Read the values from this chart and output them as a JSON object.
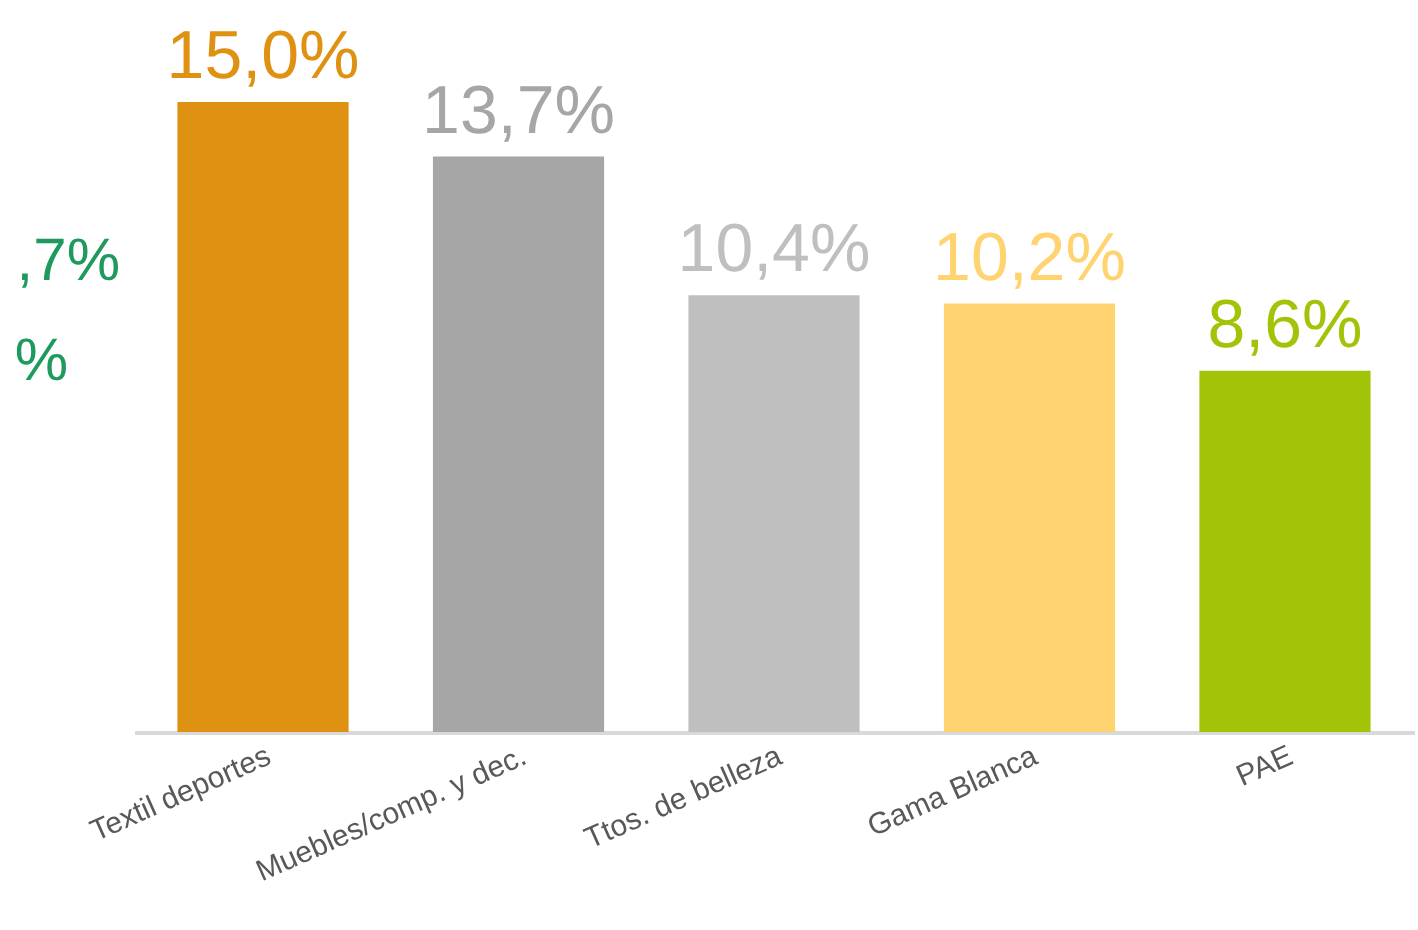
{
  "chart_data": {
    "type": "bar",
    "categories": [
      "Textil deportes",
      "Muebles/comp. y dec.",
      "Ttos. de belleza",
      "Gama Blanca",
      "PAE"
    ],
    "values": [
      15.0,
      13.7,
      10.4,
      10.2,
      8.6
    ],
    "colors": [
      "#df9212",
      "#a6a6a6",
      "#bfbfbf",
      "#ffd36f",
      "#a2c408"
    ],
    "value_labels": [
      "15,0%",
      "13,7%",
      "10,4%",
      "10,2%",
      "8,6%"
    ],
    "tick_labels": "x",
    "annotations": [
      ",7%",
      "%"
    ]
  }
}
